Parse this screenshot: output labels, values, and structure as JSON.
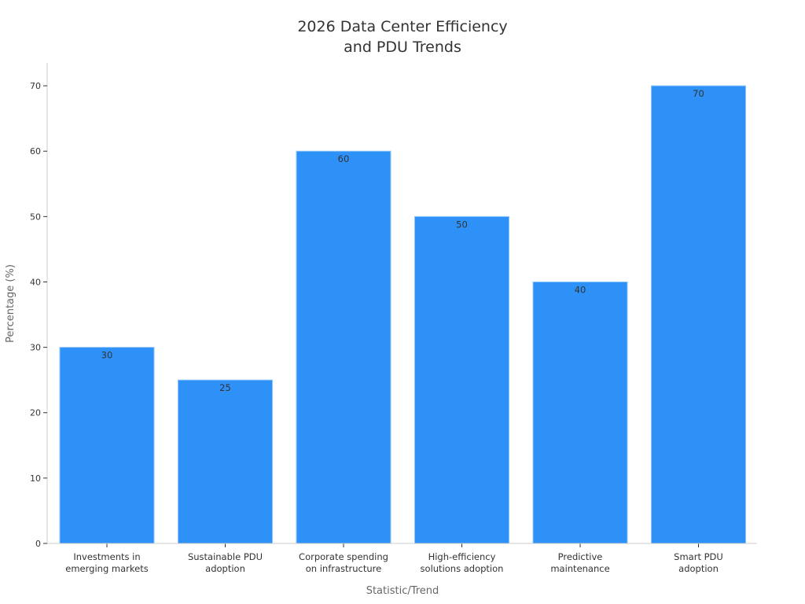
{
  "chart_data": {
    "type": "bar",
    "title": [
      "2026 Data Center Efficiency",
      "and PDU Trends"
    ],
    "xlabel": "Statistic/Trend",
    "ylabel": "Percentage (%)",
    "categories": [
      [
        "Investments in",
        "emerging markets"
      ],
      [
        "Sustainable PDU",
        "adoption"
      ],
      [
        "Corporate spending",
        "on infrastructure"
      ],
      [
        "High-efficiency",
        "solutions adoption"
      ],
      [
        "Predictive",
        "maintenance"
      ],
      [
        "Smart PDU",
        "adoption"
      ]
    ],
    "values": [
      30,
      25,
      60,
      50,
      40,
      70
    ],
    "ylim": [
      0,
      73.5
    ],
    "yticks": [
      0,
      10,
      20,
      30,
      40,
      50,
      60,
      70
    ],
    "grid": false,
    "data_labels": true,
    "colors": {
      "bar": "#2E91F8",
      "bar_edge": "#8CC4F8",
      "axis": "#cccccc"
    }
  }
}
